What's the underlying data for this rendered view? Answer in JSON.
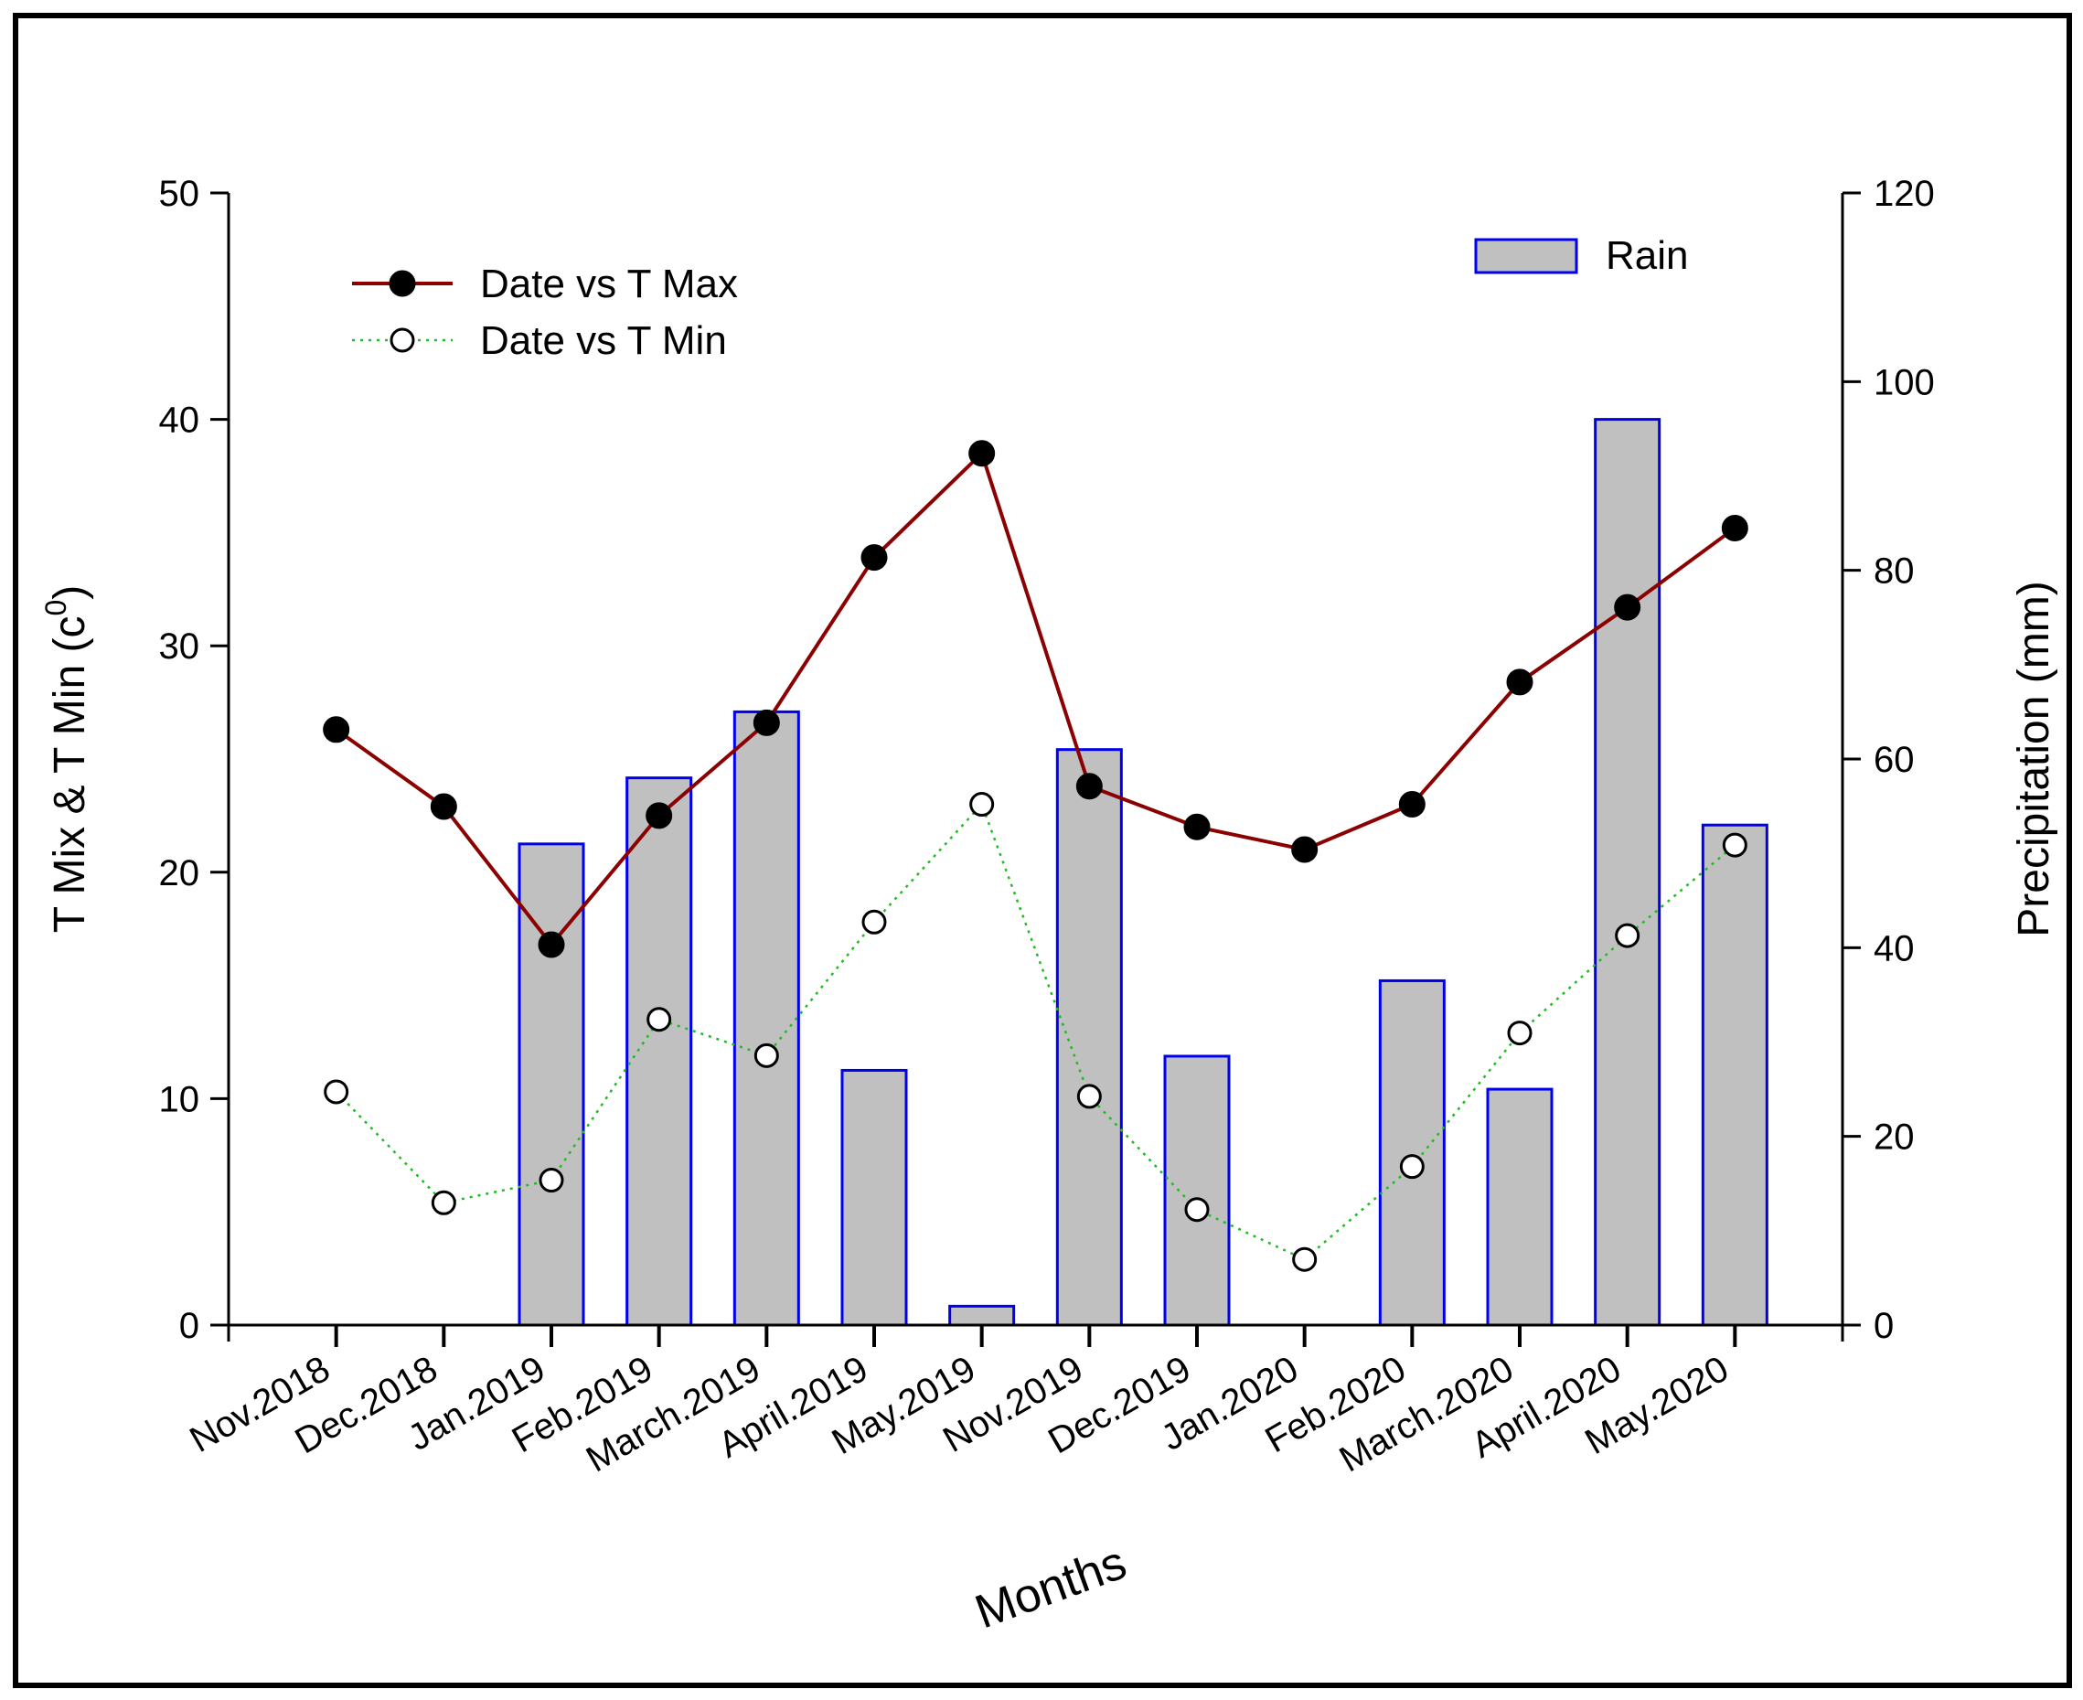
{
  "chart_data": {
    "type": "bar+line",
    "title": "",
    "xlabel": "Months",
    "ylabel_left": "T Mix & T Min (c",
    "ylabel_left_superscript": "0",
    "ylabel_left_suffix": ")",
    "ylabel_right": "Precipitation (mm)",
    "ylim_left": [
      0,
      50
    ],
    "ylim_right": [
      0,
      120
    ],
    "yticks_left": [
      "0",
      "10",
      "20",
      "30",
      "40",
      "50"
    ],
    "yticks_right": [
      "0",
      "20",
      "40",
      "60",
      "80",
      "100",
      "120"
    ],
    "categories": [
      "Nov.2018",
      "Dec.2018",
      "Jan.2019",
      "Feb.2019",
      "March.2019",
      "April.2019",
      "May.2019",
      "Nov.2019",
      "Dec.2019",
      "Jan.2020",
      "Feb.2020",
      "March.2020",
      "April.2020",
      "May.2020"
    ],
    "series": [
      {
        "name": "Date vs T Max",
        "kind": "line",
        "axis": "left",
        "color": "#8b0000",
        "marker": "filled-circle",
        "values": [
          26.3,
          22.9,
          16.8,
          22.5,
          26.6,
          33.9,
          38.5,
          23.8,
          22.0,
          21.0,
          23.0,
          28.4,
          31.7,
          35.2
        ]
      },
      {
        "name": "Date vs T Min",
        "kind": "line",
        "axis": "left",
        "color": "#22bb22",
        "marker": "open-circle",
        "values": [
          10.3,
          5.4,
          6.4,
          13.5,
          11.9,
          17.8,
          23.0,
          10.1,
          5.1,
          2.9,
          7.0,
          12.9,
          17.2,
          21.2
        ]
      },
      {
        "name": "Rain",
        "kind": "bar",
        "axis": "right",
        "fill": "#c0c0c0",
        "edge": "#0000ee",
        "values": [
          0,
          0,
          51,
          58,
          65,
          27,
          2,
          61,
          28.5,
          0,
          36.5,
          25,
          96,
          53
        ]
      }
    ],
    "legend": {
      "lines": [
        "Date vs T Max",
        "Date vs T Min"
      ],
      "bars": [
        "Rain"
      ],
      "placement": "top"
    }
  }
}
